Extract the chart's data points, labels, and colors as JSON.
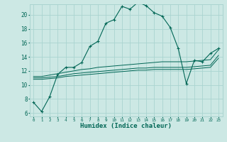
{
  "xlabel": "Humidex (Indice chaleur)",
  "bg_color": "#cce8e4",
  "grid_color": "#aad4d0",
  "line_color": "#006655",
  "xlim": [
    -0.5,
    23.5
  ],
  "ylim": [
    5.5,
    21.5
  ],
  "xticks": [
    0,
    1,
    2,
    3,
    4,
    5,
    6,
    7,
    8,
    9,
    10,
    11,
    12,
    13,
    14,
    15,
    16,
    17,
    18,
    19,
    20,
    21,
    22,
    23
  ],
  "yticks": [
    6,
    8,
    10,
    12,
    14,
    16,
    18,
    20
  ],
  "humidex_main": [
    7.5,
    6.2,
    8.3,
    11.5,
    12.5,
    12.5,
    13.2,
    15.5,
    16.2,
    18.8,
    19.3,
    21.2,
    20.8,
    21.8,
    21.3,
    20.3,
    19.8,
    18.2,
    15.2,
    10.2,
    13.5,
    13.3,
    14.5,
    15.2
  ],
  "line2": [
    11.2,
    11.2,
    11.4,
    11.6,
    11.8,
    12.0,
    12.2,
    12.3,
    12.5,
    12.6,
    12.7,
    12.8,
    12.9,
    13.0,
    13.1,
    13.2,
    13.3,
    13.3,
    13.3,
    13.3,
    13.4,
    13.5,
    13.6,
    15.0
  ],
  "line3": [
    11.0,
    11.0,
    11.1,
    11.2,
    11.4,
    11.6,
    11.7,
    11.8,
    11.9,
    12.0,
    12.1,
    12.2,
    12.3,
    12.4,
    12.4,
    12.5,
    12.5,
    12.5,
    12.5,
    12.5,
    12.6,
    12.7,
    12.8,
    14.2
  ],
  "line4": [
    10.8,
    10.8,
    10.9,
    11.0,
    11.2,
    11.3,
    11.4,
    11.5,
    11.6,
    11.7,
    11.8,
    11.9,
    12.0,
    12.1,
    12.1,
    12.2,
    12.2,
    12.2,
    12.2,
    12.2,
    12.3,
    12.4,
    12.5,
    13.8
  ]
}
